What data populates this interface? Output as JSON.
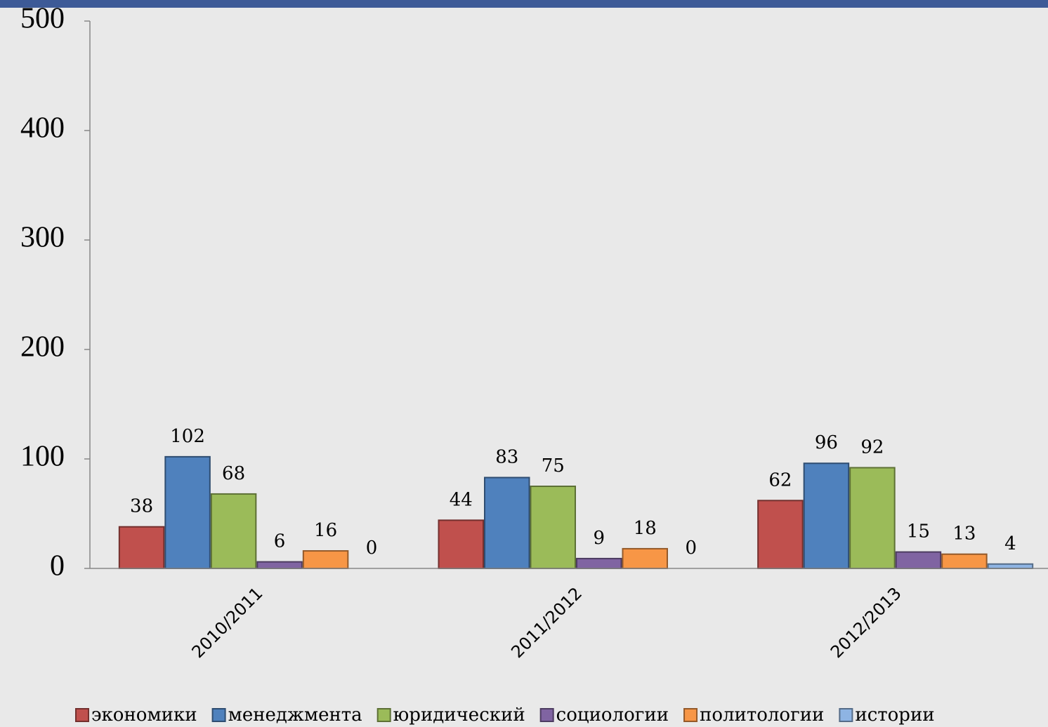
{
  "chart_data": {
    "type": "bar",
    "categories": [
      "2010/2011",
      "2011/2012",
      "2012/2013"
    ],
    "series": [
      {
        "name": "экономики",
        "color": "#c0504d",
        "values": [
          38,
          44,
          62
        ]
      },
      {
        "name": "менеджмента",
        "color": "#4f81bd",
        "values": [
          102,
          83,
          96
        ]
      },
      {
        "name": "юридический",
        "color": "#9bbb59",
        "values": [
          68,
          75,
          92
        ]
      },
      {
        "name": "социологии",
        "color": "#8064a2",
        "values": [
          6,
          9,
          15
        ]
      },
      {
        "name": "политологии",
        "color": "#f79646",
        "values": [
          16,
          18,
          13
        ]
      },
      {
        "name": "истории",
        "color": "#8eb4e3",
        "values": [
          0,
          0,
          4
        ]
      }
    ],
    "ylim": [
      0,
      500
    ],
    "yticks": [
      0,
      100,
      200,
      300,
      400,
      500
    ],
    "legend": "bottom"
  }
}
